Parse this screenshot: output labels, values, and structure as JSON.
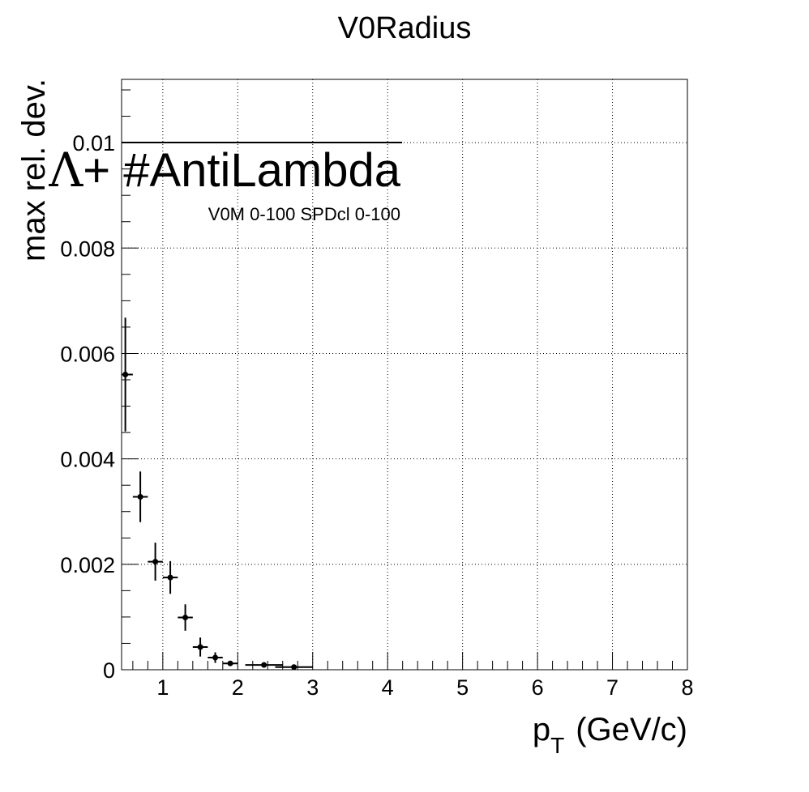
{
  "chart_data": {
    "type": "scatter",
    "title": "V0Radius",
    "xlabel": "p",
    "xlabel_sub": "T",
    "xlabel_unit": "(GeV/c)",
    "ylabel": "max rel. dev.",
    "xlim": [
      0.45,
      8.0
    ],
    "ylim": [
      0,
      0.0112
    ],
    "grid": true,
    "x_ticks": [
      1,
      2,
      3,
      4,
      5,
      6,
      7,
      8
    ],
    "x_tick_labels": [
      "1",
      "2",
      "3",
      "4",
      "5",
      "6",
      "7",
      "8"
    ],
    "y_ticks": [
      0,
      0.002,
      0.004,
      0.006,
      0.008,
      0.01
    ],
    "y_tick_labels": [
      "0",
      "0.002",
      "0.004",
      "0.006",
      "0.008",
      "0.01"
    ],
    "legend": {
      "position": "top-left",
      "symbol": "Λ",
      "entry": "+ #AntiLambda",
      "subtitle": "V0M 0-100 SPDcl 0-100"
    },
    "series": [
      {
        "x": [
          0.5,
          0.7,
          0.9,
          1.1,
          1.3,
          1.5,
          1.7,
          1.9,
          2.35,
          2.75
        ],
        "x_err": [
          0.1,
          0.1,
          0.1,
          0.1,
          0.1,
          0.1,
          0.1,
          0.1,
          0.25,
          0.25
        ],
        "y": [
          0.0056,
          0.00328,
          0.00205,
          0.00175,
          0.00099,
          0.00043,
          0.00023,
          0.00012,
          9e-05,
          5e-05
        ],
        "y_err": [
          0.00108,
          0.00048,
          0.00036,
          0.00031,
          0.00025,
          0.00018,
          0.0001,
          4e-05,
          4e-05,
          3e-05
        ]
      }
    ]
  }
}
